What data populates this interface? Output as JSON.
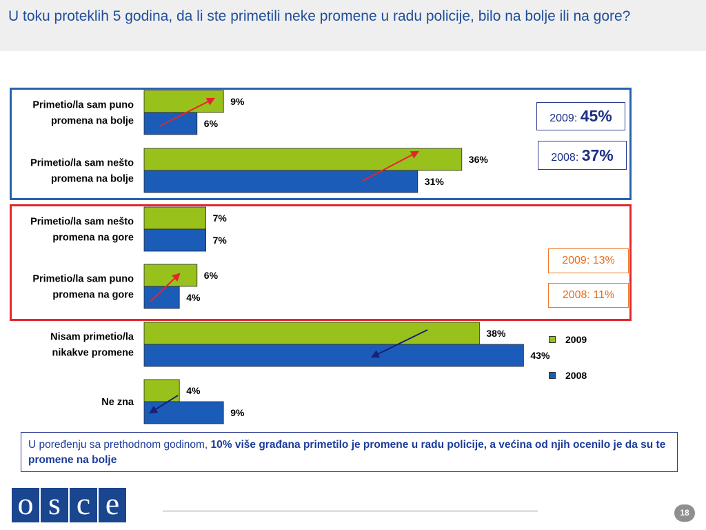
{
  "title": "U toku proteklih 5 godina, da li ste primetili neke promene u radu policije, bilo na bolje ili na gore?",
  "colors": {
    "title": "#1f4e9a",
    "series_2009": "#99c11c",
    "series_2008": "#1b5cb8",
    "positive_box": "#2763ad",
    "negative_box": "#e3262c",
    "summary_blue": "#1b2f85",
    "summary_orange": "#ec6a17",
    "arrow_red": "#e3262c",
    "arrow_navy": "#1b1f78",
    "logo": "#1a4690"
  },
  "chart_data": {
    "type": "bar",
    "orientation": "horizontal",
    "categories": [
      [
        "Primetio/la sam puno",
        "promena na bolje"
      ],
      [
        "Primetio/la sam nešto",
        "promena na bolje"
      ],
      [
        "Primetio/la sam nešto",
        "promena na gore"
      ],
      [
        "Primetio/la sam puno",
        "promena na gore"
      ],
      [
        "Nisam primetio/la",
        "nikakve promene"
      ],
      [
        "Ne zna"
      ]
    ],
    "series": [
      {
        "name": "2009",
        "color": "#99c11c",
        "values": [
          9,
          36,
          7,
          6,
          38,
          4
        ],
        "labels": [
          "9%",
          "36%",
          "7%",
          "6%",
          "38%",
          "4%"
        ]
      },
      {
        "name": "2008",
        "color": "#1b5cb8",
        "values": [
          6,
          31,
          7,
          4,
          43,
          9
        ],
        "labels": [
          "6%",
          "31%",
          "7%",
          "4%",
          "43%",
          "9%"
        ]
      }
    ],
    "value_unit": "%",
    "trend_arrows": [
      {
        "category_index": 0,
        "direction": "up",
        "color": "#e3262c"
      },
      {
        "category_index": 1,
        "direction": "up",
        "color": "#e3262c"
      },
      {
        "category_index": 3,
        "direction": "up",
        "color": "#e3262c"
      },
      {
        "category_index": 4,
        "direction": "down",
        "color": "#1b1f78"
      },
      {
        "category_index": 5,
        "direction": "down",
        "color": "#1b1f78"
      }
    ],
    "legend": {
      "position": "right",
      "entries": [
        "2009",
        "2008"
      ]
    }
  },
  "summaries": {
    "positive": [
      {
        "year": "2009:",
        "value": "45%"
      },
      {
        "year": "2008:",
        "value": "37%"
      }
    ],
    "negative": [
      {
        "year": "2009:",
        "value": "13%"
      },
      {
        "year": "2008:",
        "value": "11%"
      }
    ]
  },
  "conclusion": {
    "prefix": "U poređenju sa prethodnom godinom, ",
    "emphasis": "10% više građana primetilo je promene u radu policije, a većina od njih ocenilo je da su te promene na bolje"
  },
  "footer": {
    "logo_letters": [
      "o",
      "s",
      "c",
      "e"
    ],
    "page_number": "18"
  }
}
